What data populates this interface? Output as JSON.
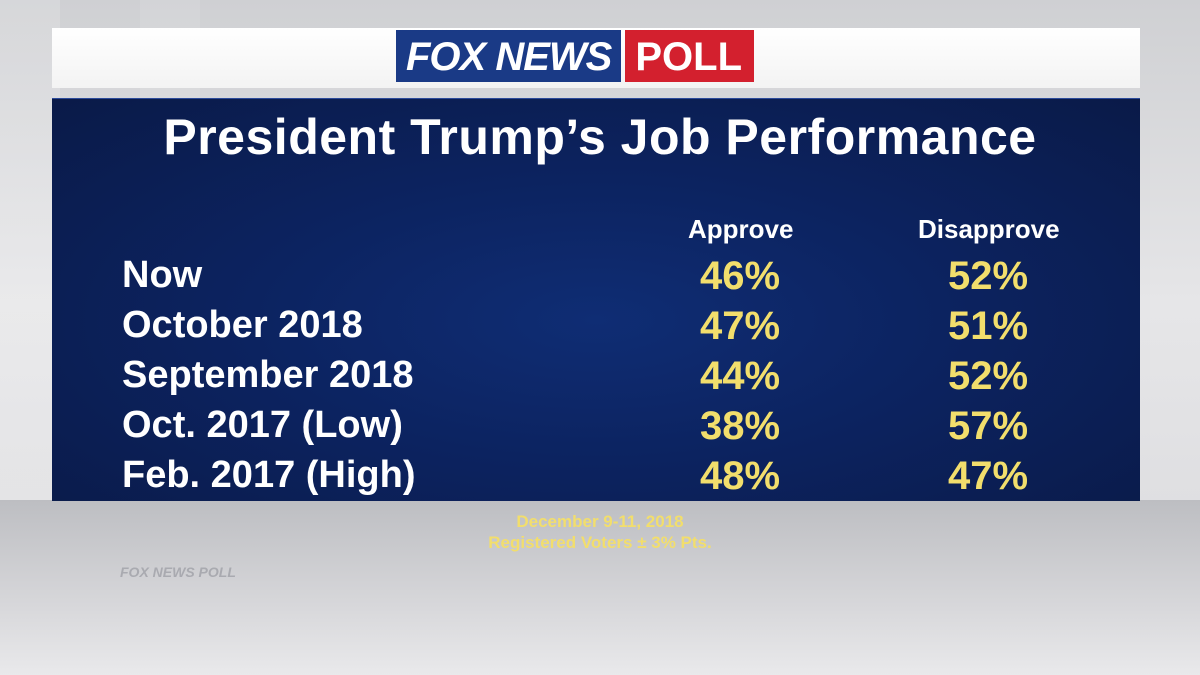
{
  "brand": {
    "fox_news": "FOX NEWS",
    "poll": "POLL"
  },
  "watermark": "FOX NEWS POLL",
  "chart_data": {
    "type": "table",
    "title": "President Trump’s Job Performance",
    "columns": [
      "Approve",
      "Disapprove"
    ],
    "rows": [
      {
        "label": "Now",
        "approve": "46%",
        "disapprove": "52%"
      },
      {
        "label": "October 2018",
        "approve": "47%",
        "disapprove": "51%"
      },
      {
        "label": "September 2018",
        "approve": "44%",
        "disapprove": "52%"
      },
      {
        "label": "Oct. 2017 (Low)",
        "approve": "38%",
        "disapprove": "57%"
      },
      {
        "label": "Feb. 2017 (High)",
        "approve": "48%",
        "disapprove": "47%"
      }
    ]
  },
  "footer": {
    "date": "December 9-11, 2018",
    "sample": "Registered Voters ± 3% Pts."
  },
  "colors": {
    "panel": "#0c2360",
    "value": "#f2de6c",
    "fox_blue": "#1a3a86",
    "poll_red": "#d3202e"
  }
}
